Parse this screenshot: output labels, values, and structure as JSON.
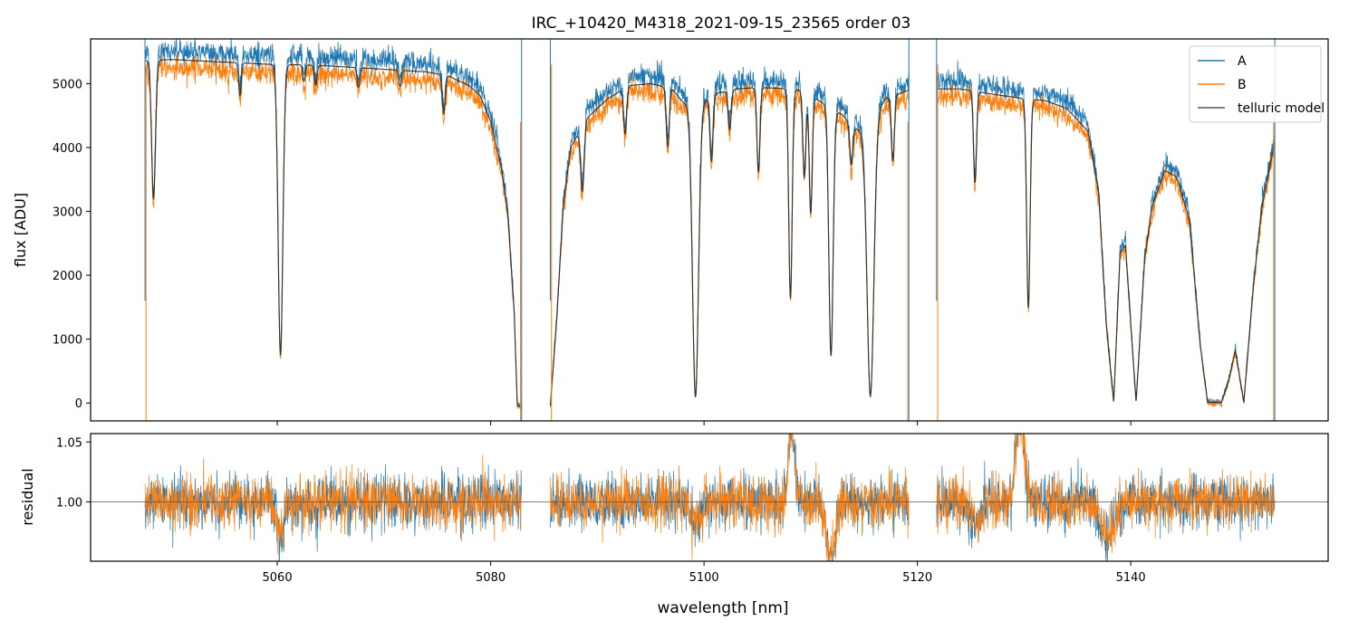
{
  "chart_data": [
    {
      "type": "line",
      "title": "IRC_+10420_M4318_2021-09-15_23565  order 03",
      "xlabel": "",
      "ylabel": "flux [ADU]",
      "xlim": [
        5042.5,
        5158.5
      ],
      "ylim": [
        -280,
        5700
      ],
      "yticks": [
        0,
        1000,
        2000,
        3000,
        4000,
        5000
      ],
      "grid": false,
      "legend_position": "top-right",
      "segments": [
        [
          5047.6,
          5082.9
        ],
        [
          5085.6,
          5119.2
        ],
        [
          5121.8,
          5153.5
        ]
      ],
      "series": [
        {
          "name": "A",
          "color": "#1f77b4"
        },
        {
          "name": "B",
          "color": "#ff7f0e"
        },
        {
          "name": "telluric model",
          "color": "#555555"
        }
      ],
      "continuum_B": [
        [
          5047.6,
          5230
        ],
        [
          5050,
          5250
        ],
        [
          5055,
          5210
        ],
        [
          5060,
          5170
        ],
        [
          5062,
          5170
        ],
        [
          5065,
          5150
        ],
        [
          5070,
          5100
        ],
        [
          5074,
          5060
        ],
        [
          5076,
          5000
        ],
        [
          5078,
          4850
        ],
        [
          5079,
          4700
        ],
        [
          5080,
          4300
        ],
        [
          5081,
          3600
        ],
        [
          5081.6,
          2900
        ],
        [
          5082.2,
          1400
        ],
        [
          5082.5,
          -50
        ],
        [
          5082.9,
          -60
        ],
        [
          5085.6,
          -50
        ],
        [
          5086.2,
          1300
        ],
        [
          5086.8,
          3000
        ],
        [
          5087.5,
          3900
        ],
        [
          5089,
          4350
        ],
        [
          5091,
          4650
        ],
        [
          5093,
          4850
        ],
        [
          5095,
          4880
        ],
        [
          5097,
          4800
        ],
        [
          5098,
          4600
        ],
        [
          5099,
          4500
        ],
        [
          5101,
          4720
        ],
        [
          5103,
          4800
        ],
        [
          5105,
          4820
        ],
        [
          5107,
          4810
        ],
        [
          5109,
          4780
        ],
        [
          5111,
          4600
        ],
        [
          5113,
          4400
        ],
        [
          5114,
          4200
        ],
        [
          5115,
          4150
        ],
        [
          5116,
          4400
        ],
        [
          5117,
          4650
        ],
        [
          5119.2,
          4780
        ],
        [
          5121.8,
          4800
        ],
        [
          5124,
          4800
        ],
        [
          5127,
          4720
        ],
        [
          5130,
          4650
        ],
        [
          5132,
          4620
        ],
        [
          5134,
          4500
        ],
        [
          5136,
          4150
        ],
        [
          5137,
          3200
        ],
        [
          5137.7,
          1200
        ],
        [
          5138.4,
          0
        ],
        [
          5139,
          2300
        ],
        [
          5139.5,
          2400
        ],
        [
          5140.5,
          0
        ],
        [
          5141.3,
          2200
        ],
        [
          5142,
          3000
        ],
        [
          5143.2,
          3550
        ],
        [
          5144.3,
          3450
        ],
        [
          5145.5,
          2800
        ],
        [
          5146.5,
          900
        ],
        [
          5147.2,
          0
        ],
        [
          5148.5,
          0
        ],
        [
          5149.2,
          350
        ],
        [
          5149.8,
          800
        ],
        [
          5150.6,
          0
        ],
        [
          5151.5,
          1800
        ],
        [
          5152.3,
          3000
        ],
        [
          5153.5,
          4000
        ]
      ],
      "absorption_lines": [
        {
          "x": 5048.4,
          "depth": 2120,
          "width": 0.18
        },
        {
          "x": 5056.5,
          "depth": 500,
          "width": 0.12
        },
        {
          "x": 5060.3,
          "depth": 4450,
          "width": 0.22
        },
        {
          "x": 5062.5,
          "depth": 250,
          "width": 0.12
        },
        {
          "x": 5063.6,
          "depth": 300,
          "width": 0.12
        },
        {
          "x": 5067.6,
          "depth": 300,
          "width": 0.12
        },
        {
          "x": 5071.5,
          "depth": 250,
          "width": 0.12
        },
        {
          "x": 5075.6,
          "depth": 600,
          "width": 0.14
        },
        {
          "x": 5088.6,
          "depth": 1000,
          "width": 0.16
        },
        {
          "x": 5092.6,
          "depth": 700,
          "width": 0.14
        },
        {
          "x": 5096.6,
          "depth": 900,
          "width": 0.14
        },
        {
          "x": 5099.2,
          "depth": 4700,
          "width": 0.28
        },
        {
          "x": 5100.7,
          "depth": 1000,
          "width": 0.14
        },
        {
          "x": 5102.4,
          "depth": 600,
          "width": 0.14
        },
        {
          "x": 5105.1,
          "depth": 1300,
          "width": 0.14
        },
        {
          "x": 5108.1,
          "depth": 3200,
          "width": 0.16
        },
        {
          "x": 5109.4,
          "depth": 1300,
          "width": 0.14
        },
        {
          "x": 5110.0,
          "depth": 1800,
          "width": 0.14
        },
        {
          "x": 5111.9,
          "depth": 3800,
          "width": 0.2
        },
        {
          "x": 5113.8,
          "depth": 600,
          "width": 0.14
        },
        {
          "x": 5115.6,
          "depth": 4200,
          "width": 0.32
        },
        {
          "x": 5117.7,
          "depth": 1000,
          "width": 0.14
        },
        {
          "x": 5125.4,
          "depth": 1400,
          "width": 0.14
        },
        {
          "x": 5130.4,
          "depth": 3200,
          "width": 0.16
        }
      ]
    },
    {
      "type": "line",
      "title": "",
      "xlabel": "wavelength [nm]",
      "ylabel": "residual",
      "xlim": [
        5042.5,
        5158.5
      ],
      "ylim": [
        0.9505,
        1.057
      ],
      "xticks": [
        5060,
        5080,
        5100,
        5120,
        5140
      ],
      "yticks": [
        1.0,
        1.05
      ],
      "yticklabels": [
        "1.00",
        "1.05"
      ],
      "reference_line": 1.0,
      "series": [
        {
          "name": "A",
          "color": "#1f77b4"
        },
        {
          "name": "B",
          "color": "#ff7f0e"
        }
      ],
      "noise_sigma": 0.011,
      "features": [
        {
          "x": 5060.3,
          "offset": -0.03,
          "width": 0.3
        },
        {
          "x": 5099.2,
          "offset": -0.02,
          "width": 0.4
        },
        {
          "x": 5108.2,
          "offset": 0.06,
          "width": 0.3
        },
        {
          "x": 5111.9,
          "offset": -0.05,
          "width": 0.4
        },
        {
          "x": 5129.6,
          "offset": 0.07,
          "width": 0.4
        },
        {
          "x": 5125.5,
          "offset": -0.02,
          "width": 0.5
        },
        {
          "x": 5137.8,
          "offset": -0.03,
          "width": 0.6
        }
      ]
    }
  ]
}
